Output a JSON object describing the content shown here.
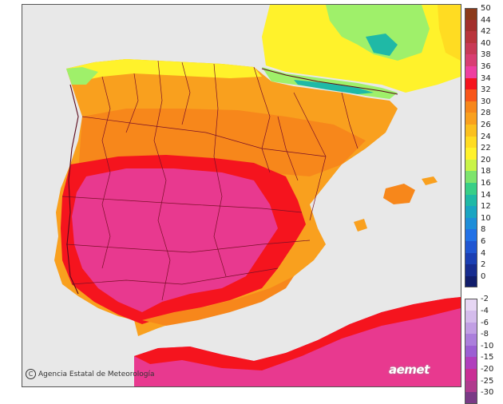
{
  "map": {
    "credit_text": "Agencia Estatal de Meteorología",
    "logo_text": "aemet",
    "colors": {
      "sea": "#e8e8e8",
      "hot_extreme": "#e8398f",
      "hot_red": "#f5141e",
      "hot_orange": "#f7871b",
      "warm_orange": "#f9a01e",
      "warm_yellow": "#fff22b",
      "mild_green": "#9ff06a",
      "cool_teal": "#1fb9a6",
      "border_line": "#7a1028"
    }
  },
  "legend": {
    "positive": [
      {
        "label": "50",
        "color": "#8b3a1a"
      },
      {
        "label": "44",
        "color": "#a3302d"
      },
      {
        "label": "42",
        "color": "#b9353c"
      },
      {
        "label": "40",
        "color": "#c83a56"
      },
      {
        "label": "38",
        "color": "#d83e72"
      },
      {
        "label": "36",
        "color": "#ee3fa0"
      },
      {
        "label": "34",
        "color": "#f5141e"
      },
      {
        "label": "32",
        "color": "#f8561a"
      },
      {
        "label": "30",
        "color": "#f7871b"
      },
      {
        "label": "28",
        "color": "#f9a01e"
      },
      {
        "label": "26",
        "color": "#fbc01f"
      },
      {
        "label": "24",
        "color": "#ffdc22"
      },
      {
        "label": "22",
        "color": "#fff22b"
      },
      {
        "label": "20",
        "color": "#c9f448"
      },
      {
        "label": "18",
        "color": "#7ee46d"
      },
      {
        "label": "16",
        "color": "#38cf87"
      },
      {
        "label": "14",
        "color": "#1fb9a6"
      },
      {
        "label": "12",
        "color": "#1aa5c2"
      },
      {
        "label": "10",
        "color": "#1e8ed9"
      },
      {
        "label": "8",
        "color": "#2271e6"
      },
      {
        "label": "6",
        "color": "#2056d2"
      },
      {
        "label": "4",
        "color": "#1b3fb3"
      },
      {
        "label": "2",
        "color": "#172c8f"
      },
      {
        "label": "0",
        "color": "#111d6b"
      }
    ],
    "negative": [
      {
        "label": "-2",
        "color": "#e6d6f3"
      },
      {
        "label": "-4",
        "color": "#d4bcec"
      },
      {
        "label": "-6",
        "color": "#c19fe4"
      },
      {
        "label": "-8",
        "color": "#ab7fdc"
      },
      {
        "label": "-10",
        "color": "#9b5fd3"
      },
      {
        "label": "-15",
        "color": "#b03fbd"
      },
      {
        "label": "-20",
        "color": "#c92f95"
      },
      {
        "label": "-25",
        "color": "#b03b8e"
      },
      {
        "label": "-30",
        "color": "#7a3a86"
      }
    ]
  }
}
